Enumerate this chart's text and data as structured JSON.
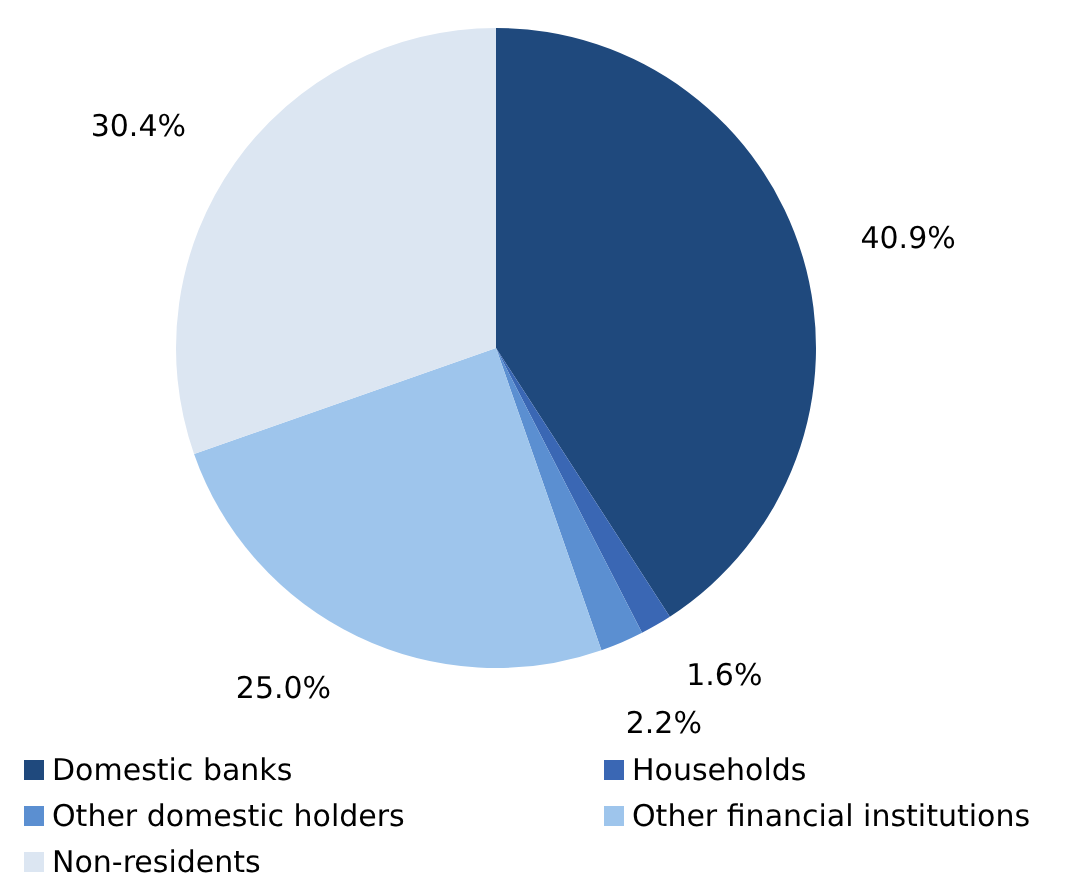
{
  "chart_data": {
    "type": "pie",
    "categories": [
      "Domestic banks",
      "Households",
      "Other domestic holders",
      "Other financial institutions",
      "Non-residents"
    ],
    "values": [
      40.9,
      1.6,
      2.2,
      25.0,
      30.4
    ],
    "value_labels": [
      "40.9%",
      "1.6%",
      "2.2%",
      "25.0%",
      "30.4%"
    ],
    "colors": [
      "#1f497d",
      "#3a67b4",
      "#5b8fd1",
      "#9ec5ec",
      "#dce6f2"
    ],
    "legend": "bottom"
  }
}
